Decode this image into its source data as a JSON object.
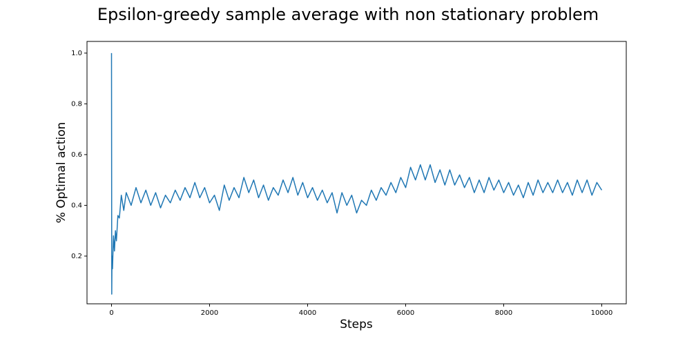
{
  "chart_data": {
    "type": "line",
    "title": "Epsilon-greedy sample average with non stationary problem",
    "xlabel": "Steps",
    "ylabel": "% Optimal action",
    "xlim": [
      -500,
      10500
    ],
    "ylim": [
      0.012,
      1.046
    ],
    "xticks": [
      0,
      2000,
      4000,
      6000,
      8000,
      10000
    ],
    "yticks": [
      0.2,
      0.4,
      0.6,
      0.8,
      {
        "value": 1,
        "label": "1.0"
      }
    ],
    "series": [
      {
        "name": "% Optimal action",
        "color": "#1f77b4",
        "x": [
          0,
          5,
          10,
          20,
          40,
          60,
          80,
          100,
          130,
          160,
          200,
          250,
          300,
          400,
          500,
          600,
          700,
          800,
          900,
          1000,
          1100,
          1200,
          1300,
          1400,
          1500,
          1600,
          1700,
          1800,
          1900,
          2000,
          2100,
          2200,
          2300,
          2400,
          2500,
          2600,
          2700,
          2800,
          2900,
          3000,
          3100,
          3200,
          3300,
          3400,
          3500,
          3600,
          3700,
          3800,
          3900,
          4000,
          4100,
          4200,
          4300,
          4400,
          4500,
          4600,
          4700,
          4800,
          4900,
          5000,
          5100,
          5200,
          5300,
          5400,
          5500,
          5600,
          5700,
          5800,
          5900,
          6000,
          6100,
          6200,
          6300,
          6400,
          6500,
          6600,
          6700,
          6800,
          6900,
          7000,
          7100,
          7200,
          7300,
          7400,
          7500,
          7600,
          7700,
          7800,
          7900,
          8000,
          8100,
          8200,
          8300,
          8400,
          8500,
          8600,
          8700,
          8800,
          8900,
          9000,
          9100,
          9200,
          9300,
          9400,
          9500,
          9600,
          9700,
          9800,
          9900,
          10000
        ],
        "values": [
          1.0,
          0.05,
          0.2,
          0.15,
          0.28,
          0.22,
          0.3,
          0.26,
          0.36,
          0.35,
          0.44,
          0.38,
          0.45,
          0.4,
          0.47,
          0.41,
          0.46,
          0.4,
          0.45,
          0.39,
          0.44,
          0.41,
          0.46,
          0.42,
          0.47,
          0.43,
          0.49,
          0.43,
          0.47,
          0.41,
          0.44,
          0.38,
          0.48,
          0.42,
          0.47,
          0.43,
          0.51,
          0.45,
          0.5,
          0.43,
          0.48,
          0.42,
          0.47,
          0.44,
          0.5,
          0.45,
          0.51,
          0.44,
          0.49,
          0.43,
          0.47,
          0.42,
          0.46,
          0.41,
          0.45,
          0.37,
          0.45,
          0.4,
          0.44,
          0.37,
          0.42,
          0.4,
          0.46,
          0.42,
          0.47,
          0.44,
          0.49,
          0.45,
          0.51,
          0.47,
          0.55,
          0.5,
          0.56,
          0.5,
          0.56,
          0.49,
          0.54,
          0.48,
          0.54,
          0.48,
          0.52,
          0.47,
          0.51,
          0.45,
          0.5,
          0.45,
          0.51,
          0.46,
          0.5,
          0.45,
          0.49,
          0.44,
          0.48,
          0.43,
          0.49,
          0.44,
          0.5,
          0.45,
          0.49,
          0.45,
          0.5,
          0.45,
          0.49,
          0.44,
          0.5,
          0.45,
          0.5,
          0.44,
          0.49,
          0.46
        ]
      }
    ]
  }
}
